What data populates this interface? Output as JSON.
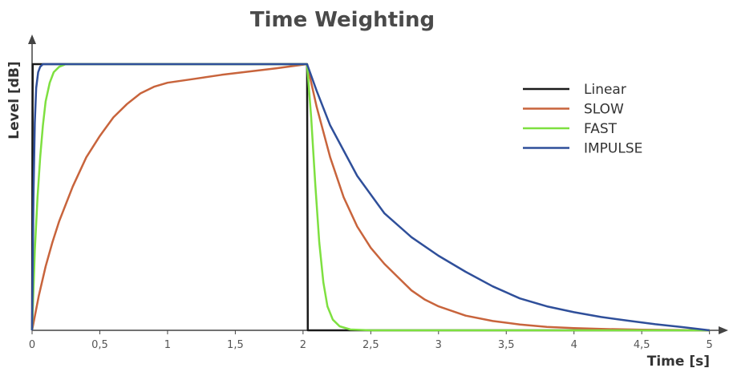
{
  "chart_data": {
    "type": "line",
    "title": "Time Weighting",
    "xlabel": "Time [s]",
    "ylabel": "Level [dB]",
    "xlim": [
      0,
      5.15
    ],
    "ylim": [
      0,
      1
    ],
    "x_ticks": [
      {
        "value": 0,
        "label": "0"
      },
      {
        "value": 0.5,
        "label": "0,5"
      },
      {
        "value": 1,
        "label": "1"
      },
      {
        "value": 1.5,
        "label": "1,5"
      },
      {
        "value": 2,
        "label": "2"
      },
      {
        "value": 2.5,
        "label": "2,5"
      },
      {
        "value": 3,
        "label": "3"
      },
      {
        "value": 3.5,
        "label": "3,5"
      },
      {
        "value": 4,
        "label": "4"
      },
      {
        "value": 4.5,
        "label": "4,5"
      },
      {
        "value": 5,
        "label": "5"
      }
    ],
    "grid": false,
    "legend_position": "top-right",
    "series": [
      {
        "name": "Linear",
        "color": "#1a1a1a",
        "points": [
          [
            0,
            0
          ],
          [
            0.005,
            1
          ],
          [
            2.03,
            1
          ],
          [
            2.035,
            0
          ],
          [
            5,
            0
          ]
        ]
      },
      {
        "name": "SLOW",
        "color": "#c8643c",
        "points": [
          [
            0,
            0
          ],
          [
            0.05,
            0.13
          ],
          [
            0.1,
            0.24
          ],
          [
            0.15,
            0.33
          ],
          [
            0.2,
            0.41
          ],
          [
            0.3,
            0.54
          ],
          [
            0.4,
            0.65
          ],
          [
            0.5,
            0.73
          ],
          [
            0.6,
            0.8
          ],
          [
            0.7,
            0.85
          ],
          [
            0.8,
            0.89
          ],
          [
            0.9,
            0.915
          ],
          [
            1.0,
            0.93
          ],
          [
            1.2,
            0.945
          ],
          [
            1.4,
            0.96
          ],
          [
            1.6,
            0.972
          ],
          [
            1.8,
            0.984
          ],
          [
            2.03,
            1
          ],
          [
            2.1,
            0.84
          ],
          [
            2.2,
            0.65
          ],
          [
            2.3,
            0.5
          ],
          [
            2.4,
            0.39
          ],
          [
            2.5,
            0.31
          ],
          [
            2.6,
            0.25
          ],
          [
            2.7,
            0.2
          ],
          [
            2.8,
            0.15
          ],
          [
            2.9,
            0.115
          ],
          [
            3.0,
            0.09
          ],
          [
            3.2,
            0.055
          ],
          [
            3.4,
            0.035
          ],
          [
            3.6,
            0.022
          ],
          [
            3.8,
            0.013
          ],
          [
            4.0,
            0.008
          ],
          [
            4.2,
            0.005
          ],
          [
            4.5,
            0.002
          ],
          [
            5.0,
            0
          ]
        ]
      },
      {
        "name": "FAST",
        "color": "#7ee040",
        "points": [
          [
            0,
            0
          ],
          [
            0.02,
            0.3
          ],
          [
            0.04,
            0.5
          ],
          [
            0.06,
            0.65
          ],
          [
            0.08,
            0.77
          ],
          [
            0.1,
            0.86
          ],
          [
            0.13,
            0.93
          ],
          [
            0.16,
            0.97
          ],
          [
            0.2,
            0.99
          ],
          [
            0.25,
            1
          ],
          [
            2.03,
            1
          ],
          [
            2.06,
            0.8
          ],
          [
            2.09,
            0.55
          ],
          [
            2.12,
            0.33
          ],
          [
            2.15,
            0.18
          ],
          [
            2.18,
            0.09
          ],
          [
            2.22,
            0.04
          ],
          [
            2.27,
            0.015
          ],
          [
            2.35,
            0.003
          ],
          [
            2.5,
            0
          ],
          [
            5,
            0
          ]
        ]
      },
      {
        "name": "IMPULSE",
        "color": "#2f4f9a",
        "points": [
          [
            0,
            0
          ],
          [
            0.01,
            0.5
          ],
          [
            0.02,
            0.78
          ],
          [
            0.03,
            0.91
          ],
          [
            0.045,
            0.97
          ],
          [
            0.06,
            0.99
          ],
          [
            0.08,
            1
          ],
          [
            2.03,
            1
          ],
          [
            2.1,
            0.9
          ],
          [
            2.2,
            0.77
          ],
          [
            2.4,
            0.58
          ],
          [
            2.6,
            0.44
          ],
          [
            2.8,
            0.35
          ],
          [
            3.0,
            0.28
          ],
          [
            3.2,
            0.22
          ],
          [
            3.4,
            0.165
          ],
          [
            3.6,
            0.12
          ],
          [
            3.8,
            0.09
          ],
          [
            4.0,
            0.068
          ],
          [
            4.2,
            0.05
          ],
          [
            4.4,
            0.036
          ],
          [
            4.6,
            0.023
          ],
          [
            4.8,
            0.012
          ],
          [
            5.0,
            0
          ]
        ]
      }
    ]
  }
}
